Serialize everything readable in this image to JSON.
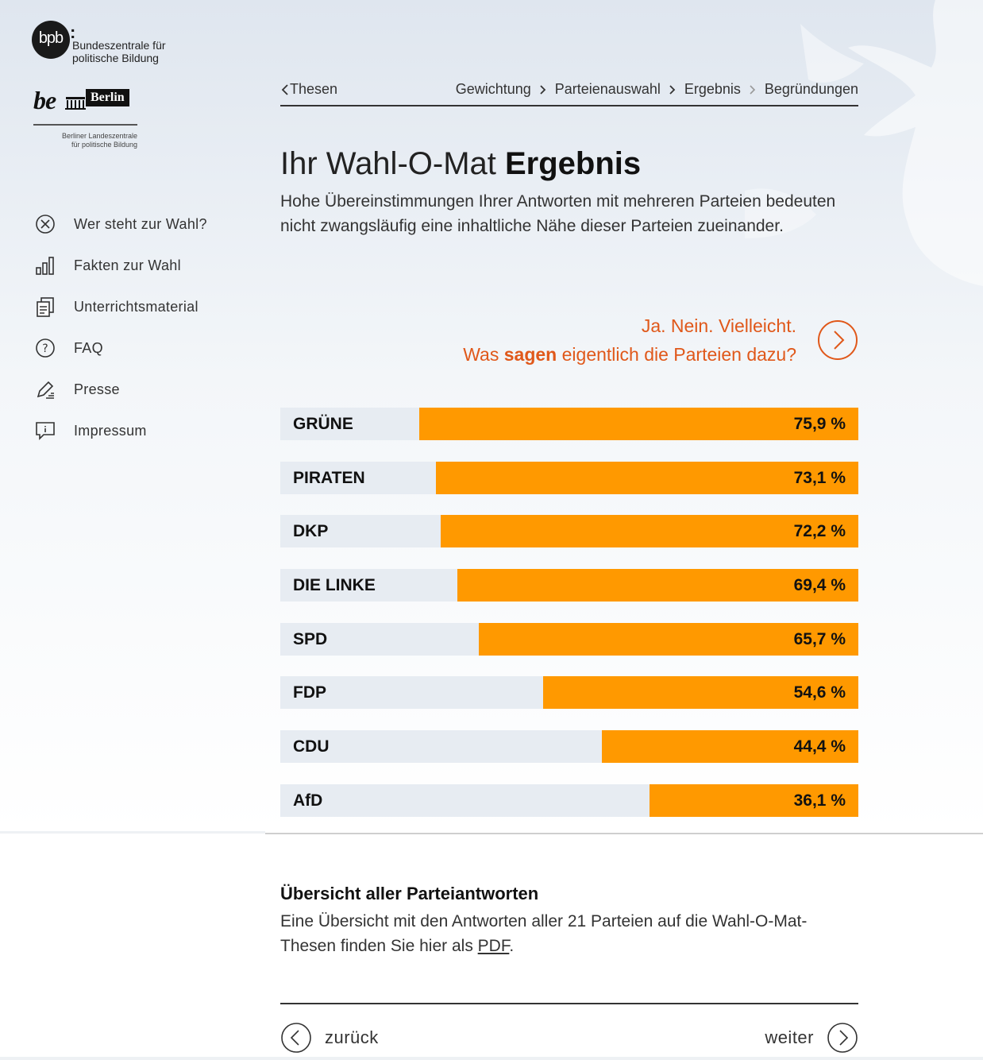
{
  "sidebar": {
    "bpb_logo_text": "bpb",
    "bpb_name_line1": "Bundeszentrale für",
    "bpb_name_line2": "politische Bildung",
    "be_text": "be",
    "berlin_text": "Berlin",
    "lz_line1": "Berliner Landeszentrale",
    "lz_line2": "für politische Bildung",
    "nav": [
      {
        "label": "Wer steht zur Wahl?",
        "icon": "circle-x-icon"
      },
      {
        "label": "Fakten zur Wahl",
        "icon": "bar-chart-icon"
      },
      {
        "label": "Unterrichtsmaterial",
        "icon": "documents-icon"
      },
      {
        "label": "FAQ",
        "icon": "question-icon"
      },
      {
        "label": "Presse",
        "icon": "pen-icon"
      },
      {
        "label": "Impressum",
        "icon": "info-bubble-icon"
      }
    ]
  },
  "breadcrumb": {
    "back": "Thesen",
    "steps": [
      "Gewichtung",
      "Parteienauswahl",
      "Ergebnis",
      "Begründungen"
    ]
  },
  "title": {
    "prefix": "Ihr Wahl-O-Mat",
    "bold": "Ergebnis"
  },
  "intro": "Hohe Übereinstimmungen Ihrer Antworten mit mehreren Parteien bedeuten nicht zwangsläufig eine inhaltliche Nähe dieser Parteien zueinander.",
  "cta": {
    "line1": "Ja. Nein. Vielleicht.",
    "line2_pre": "Was",
    "line2_bold": "sagen",
    "line2_post": "eigentlich die Parteien dazu?"
  },
  "accent_color": "#ff9900",
  "cta_color": "#e0581a",
  "results": [
    {
      "party": "GRÜNE",
      "percent": 75.9,
      "label": "75,9 %"
    },
    {
      "party": "PIRATEN",
      "percent": 73.1,
      "label": "73,1 %"
    },
    {
      "party": "DKP",
      "percent": 72.2,
      "label": "72,2 %"
    },
    {
      "party": "DIE LINKE",
      "percent": 69.4,
      "label": "69,4 %"
    },
    {
      "party": "SPD",
      "percent": 65.7,
      "label": "65,7 %"
    },
    {
      "party": "FDP",
      "percent": 54.6,
      "label": "54,6 %"
    },
    {
      "party": "CDU",
      "percent": 44.4,
      "label": "44,4 %"
    },
    {
      "party": "AfD",
      "percent": 36.1,
      "label": "36,1 %"
    }
  ],
  "overview": {
    "title": "Übersicht aller Parteiantworten",
    "text_pre": "Eine Übersicht mit den Antworten aller 21 Parteien auf die Wahl-O-Mat-Thesen finden Sie hier als",
    "link": "PDF",
    "text_post": "."
  },
  "footer": {
    "back": "zurück",
    "next": "weiter"
  }
}
